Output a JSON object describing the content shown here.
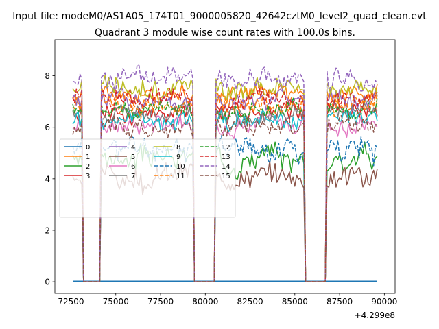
{
  "chart_data": {
    "type": "line",
    "suptitle": "Input file: modeM0/AS1A05_174T01_9000005820_42642cztM0_level2_quad_clean.evt",
    "title": "Quadrant 3 module wise count rates with 100.0s bins.",
    "xlabel": "",
    "ylabel": "",
    "x_offset_label": "+4.299e8",
    "xlim": [
      71600,
      90600
    ],
    "ylim": [
      -0.45,
      9.4
    ],
    "x_ticks": [
      72500,
      75000,
      77500,
      80000,
      82500,
      85000,
      87500,
      90000
    ],
    "x_tick_labels": [
      "72500",
      "75000",
      "77500",
      "80000",
      "82500",
      "85000",
      "87500",
      "90000"
    ],
    "y_ticks": [
      0,
      2,
      4,
      6,
      8
    ],
    "y_tick_labels": [
      "0",
      "2",
      "4",
      "6",
      "8"
    ],
    "grid": false,
    "legend_position": "center-left",
    "legend_columns": 4,
    "segments": [
      [
        72600,
        73100
      ],
      [
        74200,
        79300
      ],
      [
        80600,
        85500
      ],
      [
        86800,
        89600
      ]
    ],
    "series": [
      {
        "name": "0",
        "color": "#1f77b4",
        "dash": "solid",
        "level": 0.02,
        "amp": 0.0,
        "seed": 1
      },
      {
        "name": "1",
        "color": "#ff7f0e",
        "dash": "solid",
        "level": 7.3,
        "amp": 0.35,
        "seed": 2
      },
      {
        "name": "2",
        "color": "#2ca02c",
        "dash": "solid",
        "level": 4.8,
        "amp": 0.45,
        "seed": 3
      },
      {
        "name": "3",
        "color": "#d62728",
        "dash": "solid",
        "level": 6.6,
        "amp": 0.4,
        "seed": 4
      },
      {
        "name": "4",
        "color": "#9467bd",
        "dash": "solid",
        "level": 7.0,
        "amp": 0.4,
        "seed": 5
      },
      {
        "name": "5",
        "color": "#8c564b",
        "dash": "solid",
        "level": 4.1,
        "amp": 0.5,
        "seed": 6
      },
      {
        "name": "6",
        "color": "#e377c2",
        "dash": "solid",
        "level": 6.1,
        "amp": 0.35,
        "seed": 7
      },
      {
        "name": "7",
        "color": "#7f7f7f",
        "dash": "solid",
        "level": 6.5,
        "amp": 0.35,
        "seed": 8
      },
      {
        "name": "8",
        "color": "#bcbd22",
        "dash": "solid",
        "level": 7.5,
        "amp": 0.45,
        "seed": 9
      },
      {
        "name": "9",
        "color": "#17becf",
        "dash": "solid",
        "level": 6.3,
        "amp": 0.4,
        "seed": 10
      },
      {
        "name": "10",
        "color": "#1f77b4",
        "dash": "dashed",
        "level": 5.2,
        "amp": 0.5,
        "seed": 11
      },
      {
        "name": "11",
        "color": "#ff7f0e",
        "dash": "dashed",
        "level": 6.9,
        "amp": 0.4,
        "seed": 12
      },
      {
        "name": "12",
        "color": "#2ca02c",
        "dash": "dashed",
        "level": 6.7,
        "amp": 0.35,
        "seed": 13
      },
      {
        "name": "13",
        "color": "#d62728",
        "dash": "dashed",
        "level": 7.1,
        "amp": 0.4,
        "seed": 14
      },
      {
        "name": "14",
        "color": "#9467bd",
        "dash": "dashed",
        "level": 7.9,
        "amp": 0.4,
        "seed": 15
      },
      {
        "name": "15",
        "color": "#8c564b",
        "dash": "dashed",
        "level": 6.0,
        "amp": 0.4,
        "seed": 16
      }
    ]
  }
}
